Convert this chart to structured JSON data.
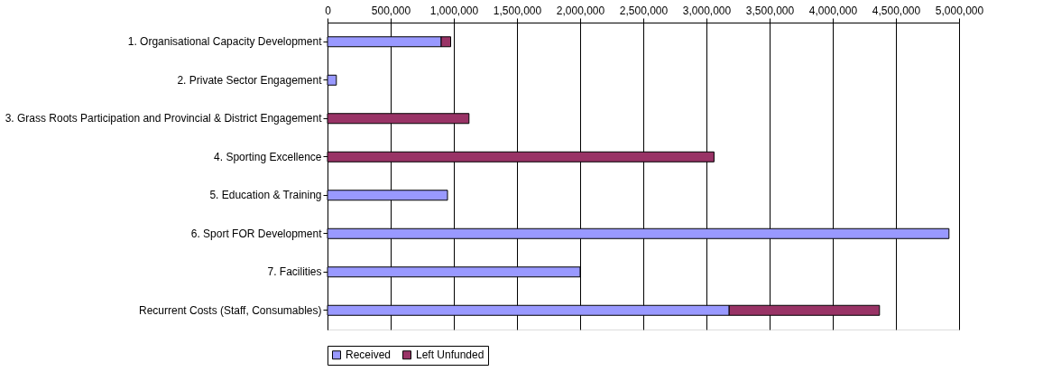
{
  "chart_data": {
    "type": "bar",
    "orientation": "horizontal",
    "stacked": true,
    "categories": [
      "1. Organisational Capacity Development",
      "2. Private Sector Engagement",
      "3. Grass Roots Participation and Provincial & District Engagement",
      "4. Sporting Excellence",
      "5. Education & Training",
      "6. Sport FOR Development",
      "7. Facilities",
      "Recurrent Costs (Staff, Consumables)"
    ],
    "series": [
      {
        "name": "Received",
        "color": "#9999ff",
        "values": [
          900000,
          70000,
          null,
          null,
          950000,
          4920000,
          2000000,
          3180000
        ]
      },
      {
        "name": "Left Unfunded",
        "color": "#993366",
        "values": [
          75000,
          null,
          1120000,
          3060000,
          null,
          null,
          null,
          1190000
        ]
      }
    ],
    "xlim": [
      0,
      5000000
    ],
    "xticks": [
      {
        "value": 0,
        "label": "0"
      },
      {
        "value": 500000,
        "label": "500,000"
      },
      {
        "value": 1000000,
        "label": "1,000,000"
      },
      {
        "value": 1500000,
        "label": "1,500,000"
      },
      {
        "value": 2000000,
        "label": "2,000,000"
      },
      {
        "value": 2500000,
        "label": "2,500,000"
      },
      {
        "value": 3000000,
        "label": "3,000,000"
      },
      {
        "value": 3500000,
        "label": "3,500,000"
      },
      {
        "value": 4000000,
        "label": "4,000,000"
      },
      {
        "value": 4500000,
        "label": "4,500,000"
      },
      {
        "value": 5000000,
        "label": "5,000,000"
      }
    ],
    "grid": "x",
    "legend": "bottom"
  }
}
